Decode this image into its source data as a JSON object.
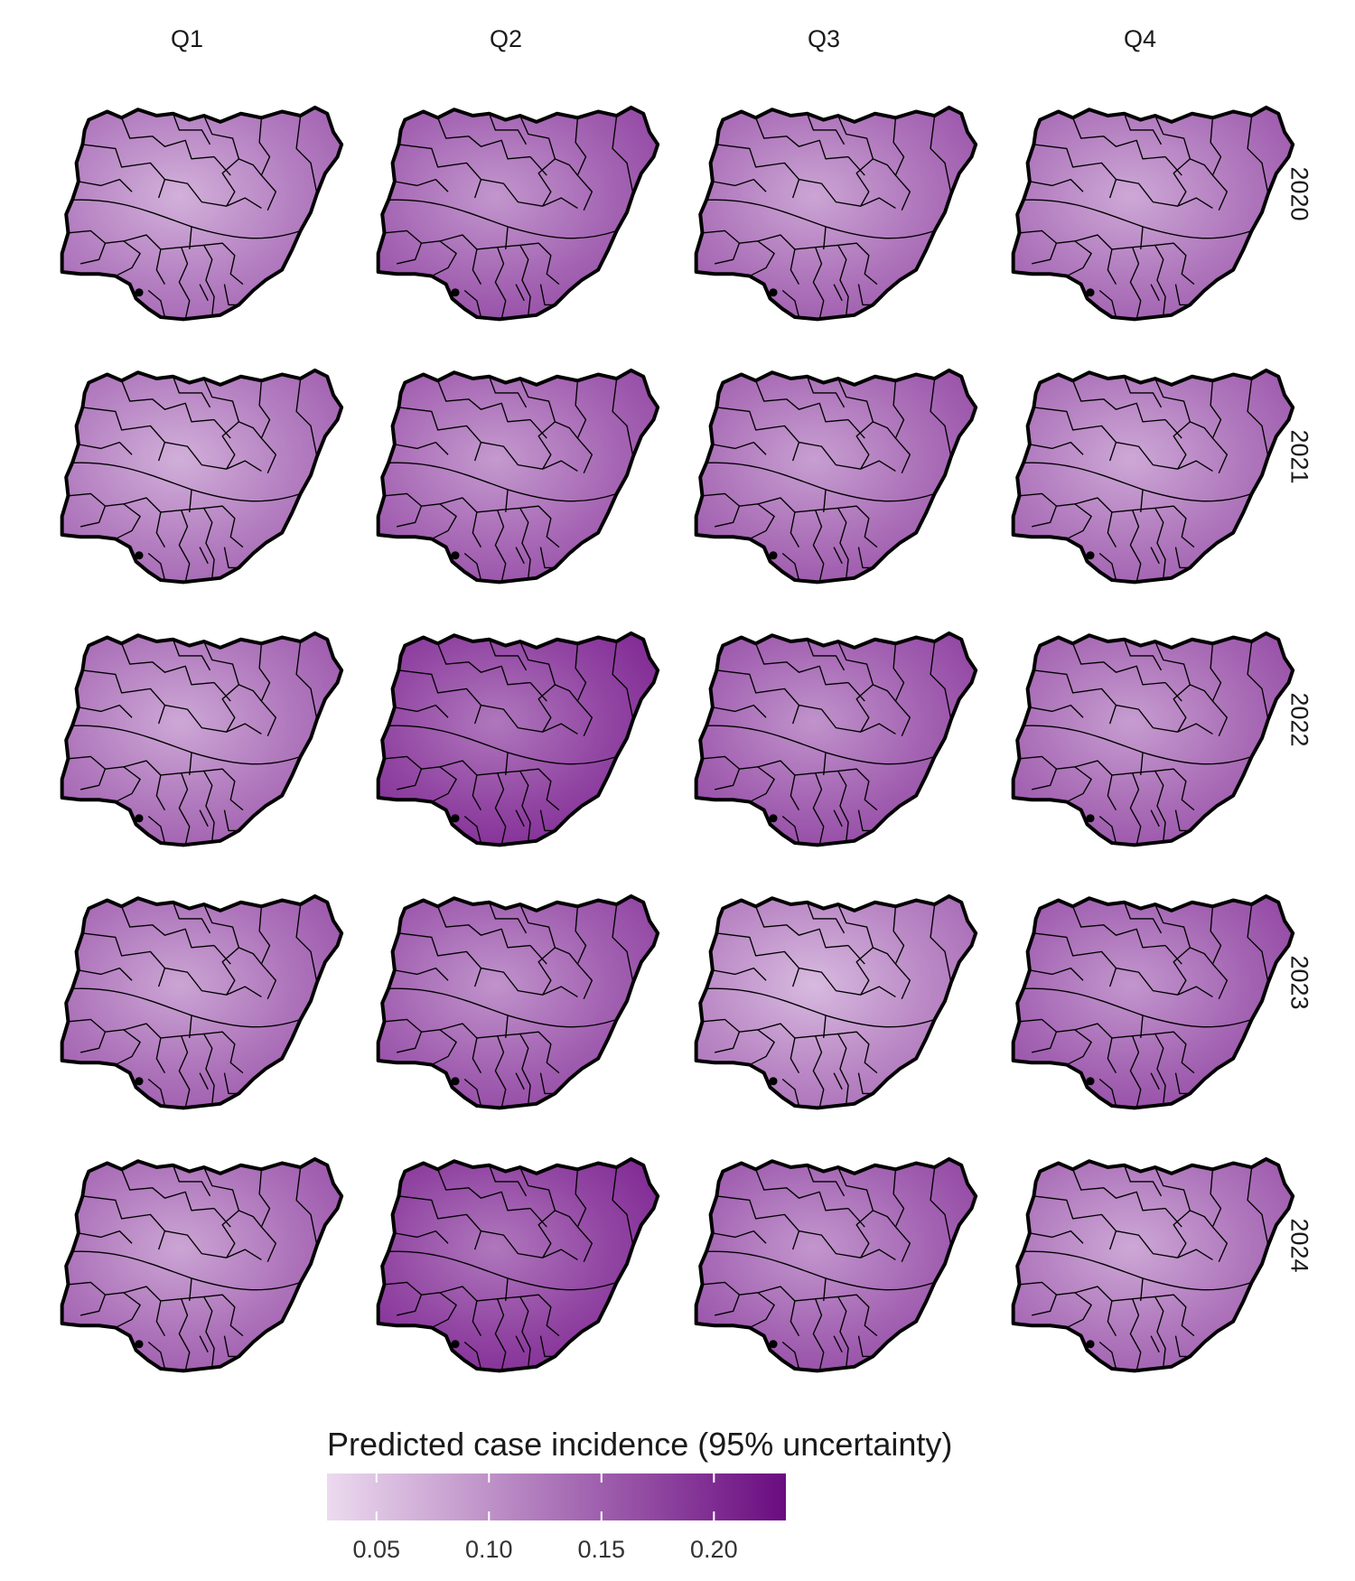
{
  "columns": [
    "Q1",
    "Q2",
    "Q3",
    "Q4"
  ],
  "rows": [
    "2020",
    "2021",
    "2022",
    "2023",
    "2024"
  ],
  "panel_intensity": [
    [
      0.45,
      0.6,
      0.52,
      0.5
    ],
    [
      0.46,
      0.58,
      0.55,
      0.5
    ],
    [
      0.5,
      0.78,
      0.62,
      0.56
    ],
    [
      0.52,
      0.62,
      0.4,
      0.6
    ],
    [
      0.52,
      0.78,
      0.6,
      0.5
    ]
  ],
  "legend": {
    "title": "Predicted case incidence (95% uncertainty)",
    "ticks": [
      "0.05",
      "0.10",
      "0.15",
      "0.20"
    ],
    "tick_values": [
      0.05,
      0.1,
      0.15,
      0.2
    ],
    "range": [
      0.028,
      0.232
    ],
    "color_low": "#ecdaef",
    "color_high": "#6a0c80"
  },
  "colors": {
    "fill_light": "#e4cfea",
    "fill_dark": "#7a1e8e",
    "border": "#000000"
  }
}
